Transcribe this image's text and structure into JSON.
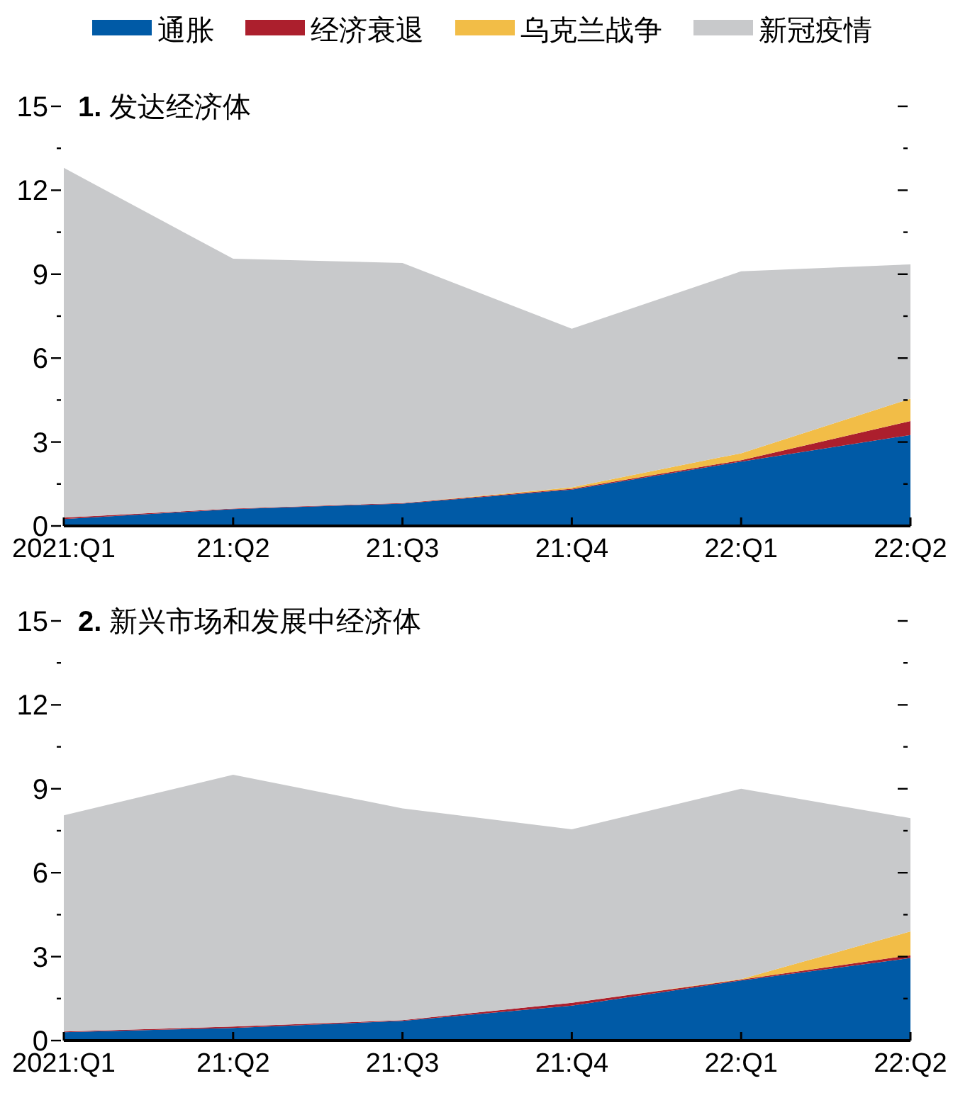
{
  "chart_data": [
    {
      "type": "area",
      "stacked": true,
      "title": "1. 发达经济体",
      "legend": "top",
      "categories": [
        "2021:Q1",
        "21:Q2",
        "21:Q3",
        "21:Q4",
        "22:Q1",
        "22:Q2"
      ],
      "ylim": [
        0,
        15
      ],
      "yticks": [
        0,
        {
          "value": 1.5,
          "label": null
        },
        3,
        {
          "value": 4.5,
          "label": null
        },
        6,
        {
          "value": 7.5,
          "label": null
        },
        9,
        {
          "value": 10.5,
          "label": null
        },
        12,
        {
          "value": 13.5,
          "label": null
        },
        15
      ],
      "series": [
        {
          "name": "通胀",
          "color": "#005aa6",
          "values": [
            0.25,
            0.6,
            0.8,
            1.3,
            2.3,
            3.25
          ]
        },
        {
          "name": "经济衰退",
          "color": "#ac1f2d",
          "values": [
            0.05,
            0.02,
            0.02,
            0.03,
            0.05,
            0.5
          ]
        },
        {
          "name": "乌克兰战争",
          "color": "#f2bd47",
          "values": [
            0,
            0,
            0,
            0.05,
            0.25,
            0.8
          ]
        },
        {
          "name": "新冠疫情",
          "color": "#c8c9cb",
          "values": [
            12.5,
            8.93,
            8.58,
            5.67,
            6.5,
            4.8
          ]
        }
      ]
    },
    {
      "type": "area",
      "stacked": true,
      "title": "2. 新兴市场和发展中经济体",
      "categories": [
        "2021:Q1",
        "21:Q2",
        "21:Q3",
        "21:Q4",
        "22:Q1",
        "22:Q2"
      ],
      "ylim": [
        0,
        15
      ],
      "yticks": [
        0,
        {
          "value": 1.5,
          "label": null
        },
        3,
        {
          "value": 4.5,
          "label": null
        },
        6,
        {
          "value": 7.5,
          "label": null
        },
        9,
        {
          "value": 10.5,
          "label": null
        },
        12,
        {
          "value": 13.5,
          "label": null
        },
        15
      ],
      "series": [
        {
          "color": "#005aa6",
          "values": [
            0.3,
            0.45,
            0.7,
            1.25,
            2.15,
            2.95
          ]
        },
        {
          "color": "#ac1f2d",
          "values": [
            0.02,
            0.05,
            0.03,
            0.1,
            0.03,
            0.1
          ]
        },
        {
          "color": "#f2bd47",
          "values": [
            0,
            0,
            0,
            0,
            0.02,
            0.85
          ]
        },
        {
          "color": "#c8c9cb",
          "values": [
            7.73,
            9.0,
            7.57,
            6.2,
            6.8,
            4.05
          ]
        }
      ]
    }
  ]
}
